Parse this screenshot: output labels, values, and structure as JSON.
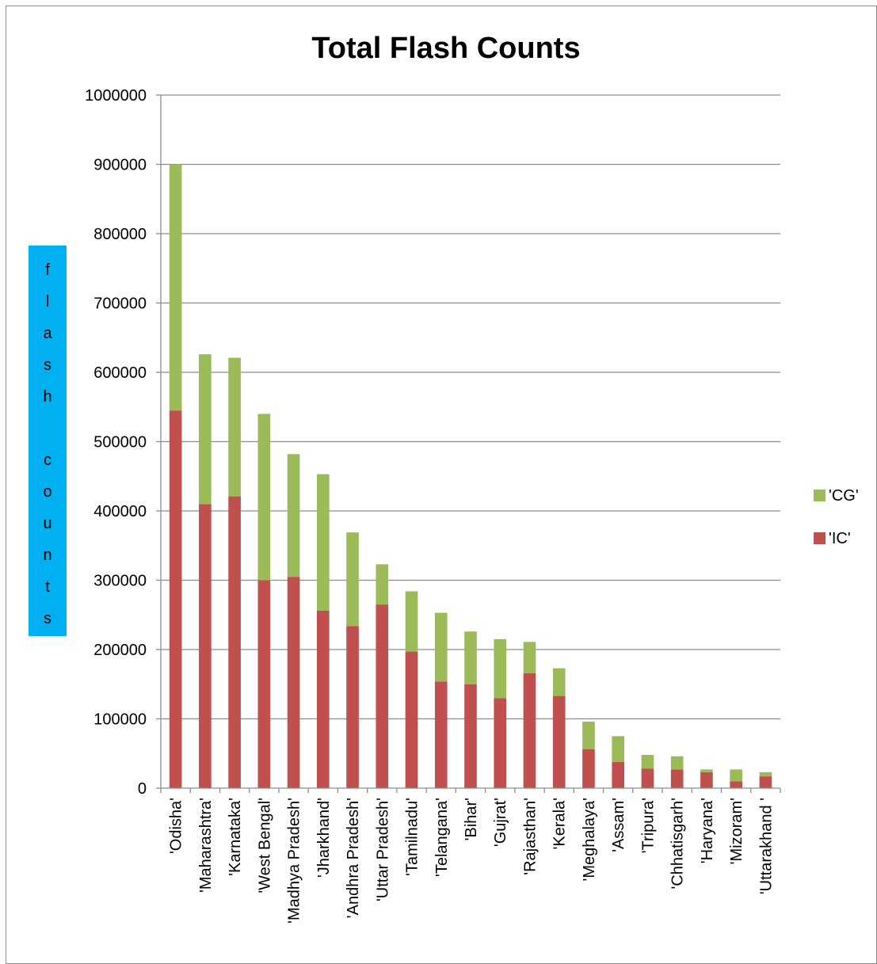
{
  "chart_data": {
    "type": "bar",
    "stacked": true,
    "title": "Total Flash Counts",
    "ylabel": "flash counts",
    "xlabel": "",
    "ylim": [
      0,
      1000000
    ],
    "yticks": [
      0,
      100000,
      200000,
      300000,
      400000,
      500000,
      600000,
      700000,
      800000,
      900000,
      1000000
    ],
    "grid": true,
    "legend_position": "right",
    "categories": [
      "'Odisha'",
      "'Maharashtra'",
      "'Karnataka'",
      "'West Bengal'",
      "'Madhya Pradesh'",
      "'Jharkhand'",
      "'Andhra Pradesh'",
      "'Uttar Pradesh'",
      "'Tamilnadu'",
      "'Telangana'",
      "'Bihar'",
      "'Gujrat'",
      "'Rajasthan'",
      "'Kerala'",
      "'Meghalaya'",
      "'Assam'",
      "'Tripura'",
      "'Chhatisgarh'",
      "'Haryana'",
      "'Mizoram'",
      "'Uttarakhand '"
    ],
    "series": [
      {
        "name": "'IC'",
        "color": "#c0504d",
        "values": [
          545000,
          410000,
          421000,
          300000,
          305000,
          256000,
          234000,
          265000,
          197000,
          154000,
          150000,
          130000,
          166000,
          133000,
          56000,
          38000,
          28000,
          27000,
          23000,
          10000,
          17000
        ]
      },
      {
        "name": "'CG'",
        "color": "#9bbb59",
        "values": [
          355000,
          216000,
          200000,
          240000,
          177000,
          197000,
          135000,
          58000,
          87000,
          99000,
          76000,
          85000,
          45000,
          40000,
          40000,
          37000,
          20000,
          19000,
          4000,
          17000,
          6000
        ]
      }
    ],
    "legend_order": [
      "'CG'",
      "'IC'"
    ]
  }
}
